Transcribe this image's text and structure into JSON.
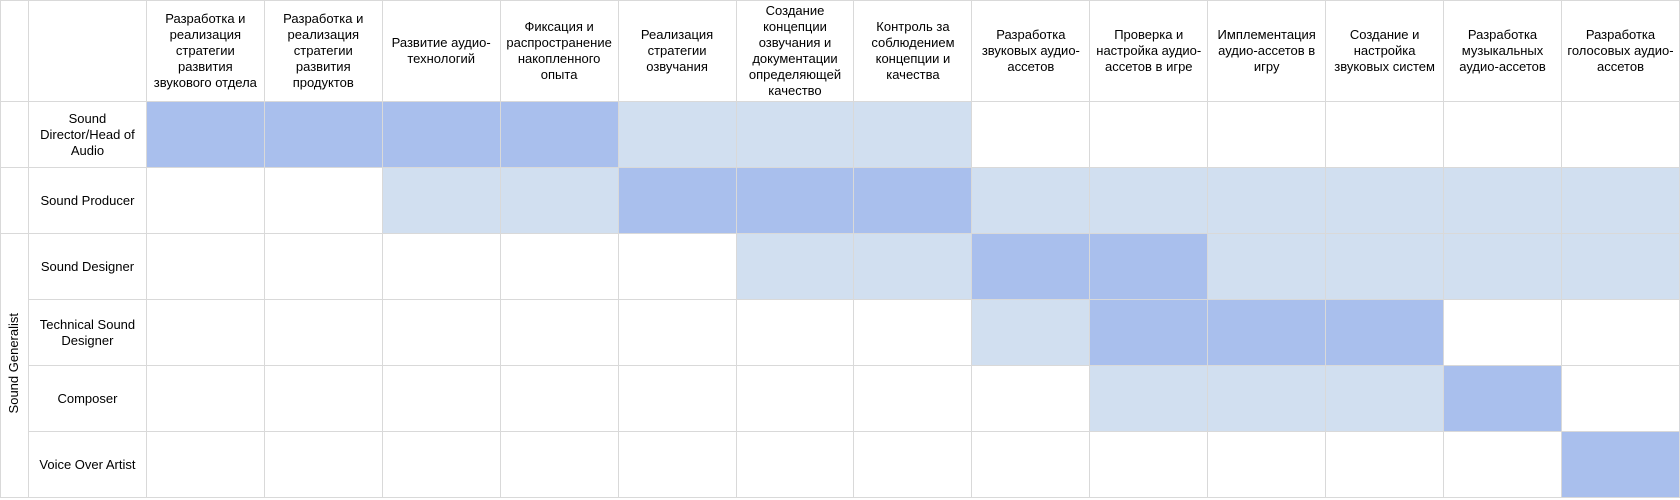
{
  "group_label": "Sound Generalist",
  "colors": {
    "primary": "#a9bfed",
    "secondary": "#d1dff0",
    "none": "#ffffff",
    "grid": "#d9d9d9"
  },
  "legend_levels": {
    "2": "primary",
    "1": "secondary",
    "0": "none"
  },
  "columns": [
    "Разработка и реализация стратегии развития звукового отдела",
    "Разработка и реализация стратегии развития продуктов",
    "Развитие аудио-технологий",
    "Фиксация и распространение накопленного опыта",
    "Реализация стратегии озвучания",
    "Создание концепции озвучания и документации определяющей качество",
    "Контроль за соблюдением концепции и качества",
    "Разработка звуковых аудио-ассетов",
    "Проверка и настройка аудио-ассетов в игре",
    "Имплементация аудио-ассетов в игру",
    "Создание и настройка звуковых систем",
    "Разработка музыкальных аудио-ассетов",
    "Разработка голосовых аудио-ассетов"
  ],
  "rows": [
    {
      "role": "Sound Director/Head of Audio",
      "in_group": false,
      "levels": [
        2,
        2,
        2,
        2,
        1,
        1,
        1,
        0,
        0,
        0,
        0,
        0,
        0
      ]
    },
    {
      "role": "Sound Producer",
      "in_group": false,
      "levels": [
        0,
        0,
        1,
        1,
        2,
        2,
        2,
        1,
        1,
        1,
        1,
        1,
        1
      ]
    },
    {
      "role": "Sound Designer",
      "in_group": true,
      "levels": [
        0,
        0,
        0,
        0,
        0,
        1,
        1,
        2,
        2,
        1,
        1,
        1,
        1
      ]
    },
    {
      "role": "Technical Sound Designer",
      "in_group": true,
      "levels": [
        0,
        0,
        0,
        0,
        0,
        0,
        0,
        1,
        2,
        2,
        2,
        0,
        0
      ]
    },
    {
      "role": "Composer",
      "in_group": true,
      "levels": [
        0,
        0,
        0,
        0,
        0,
        0,
        0,
        0,
        1,
        1,
        1,
        2,
        0
      ]
    },
    {
      "role": "Voice Over Artist",
      "in_group": true,
      "levels": [
        0,
        0,
        0,
        0,
        0,
        0,
        0,
        0,
        0,
        0,
        0,
        0,
        2
      ]
    }
  ]
}
